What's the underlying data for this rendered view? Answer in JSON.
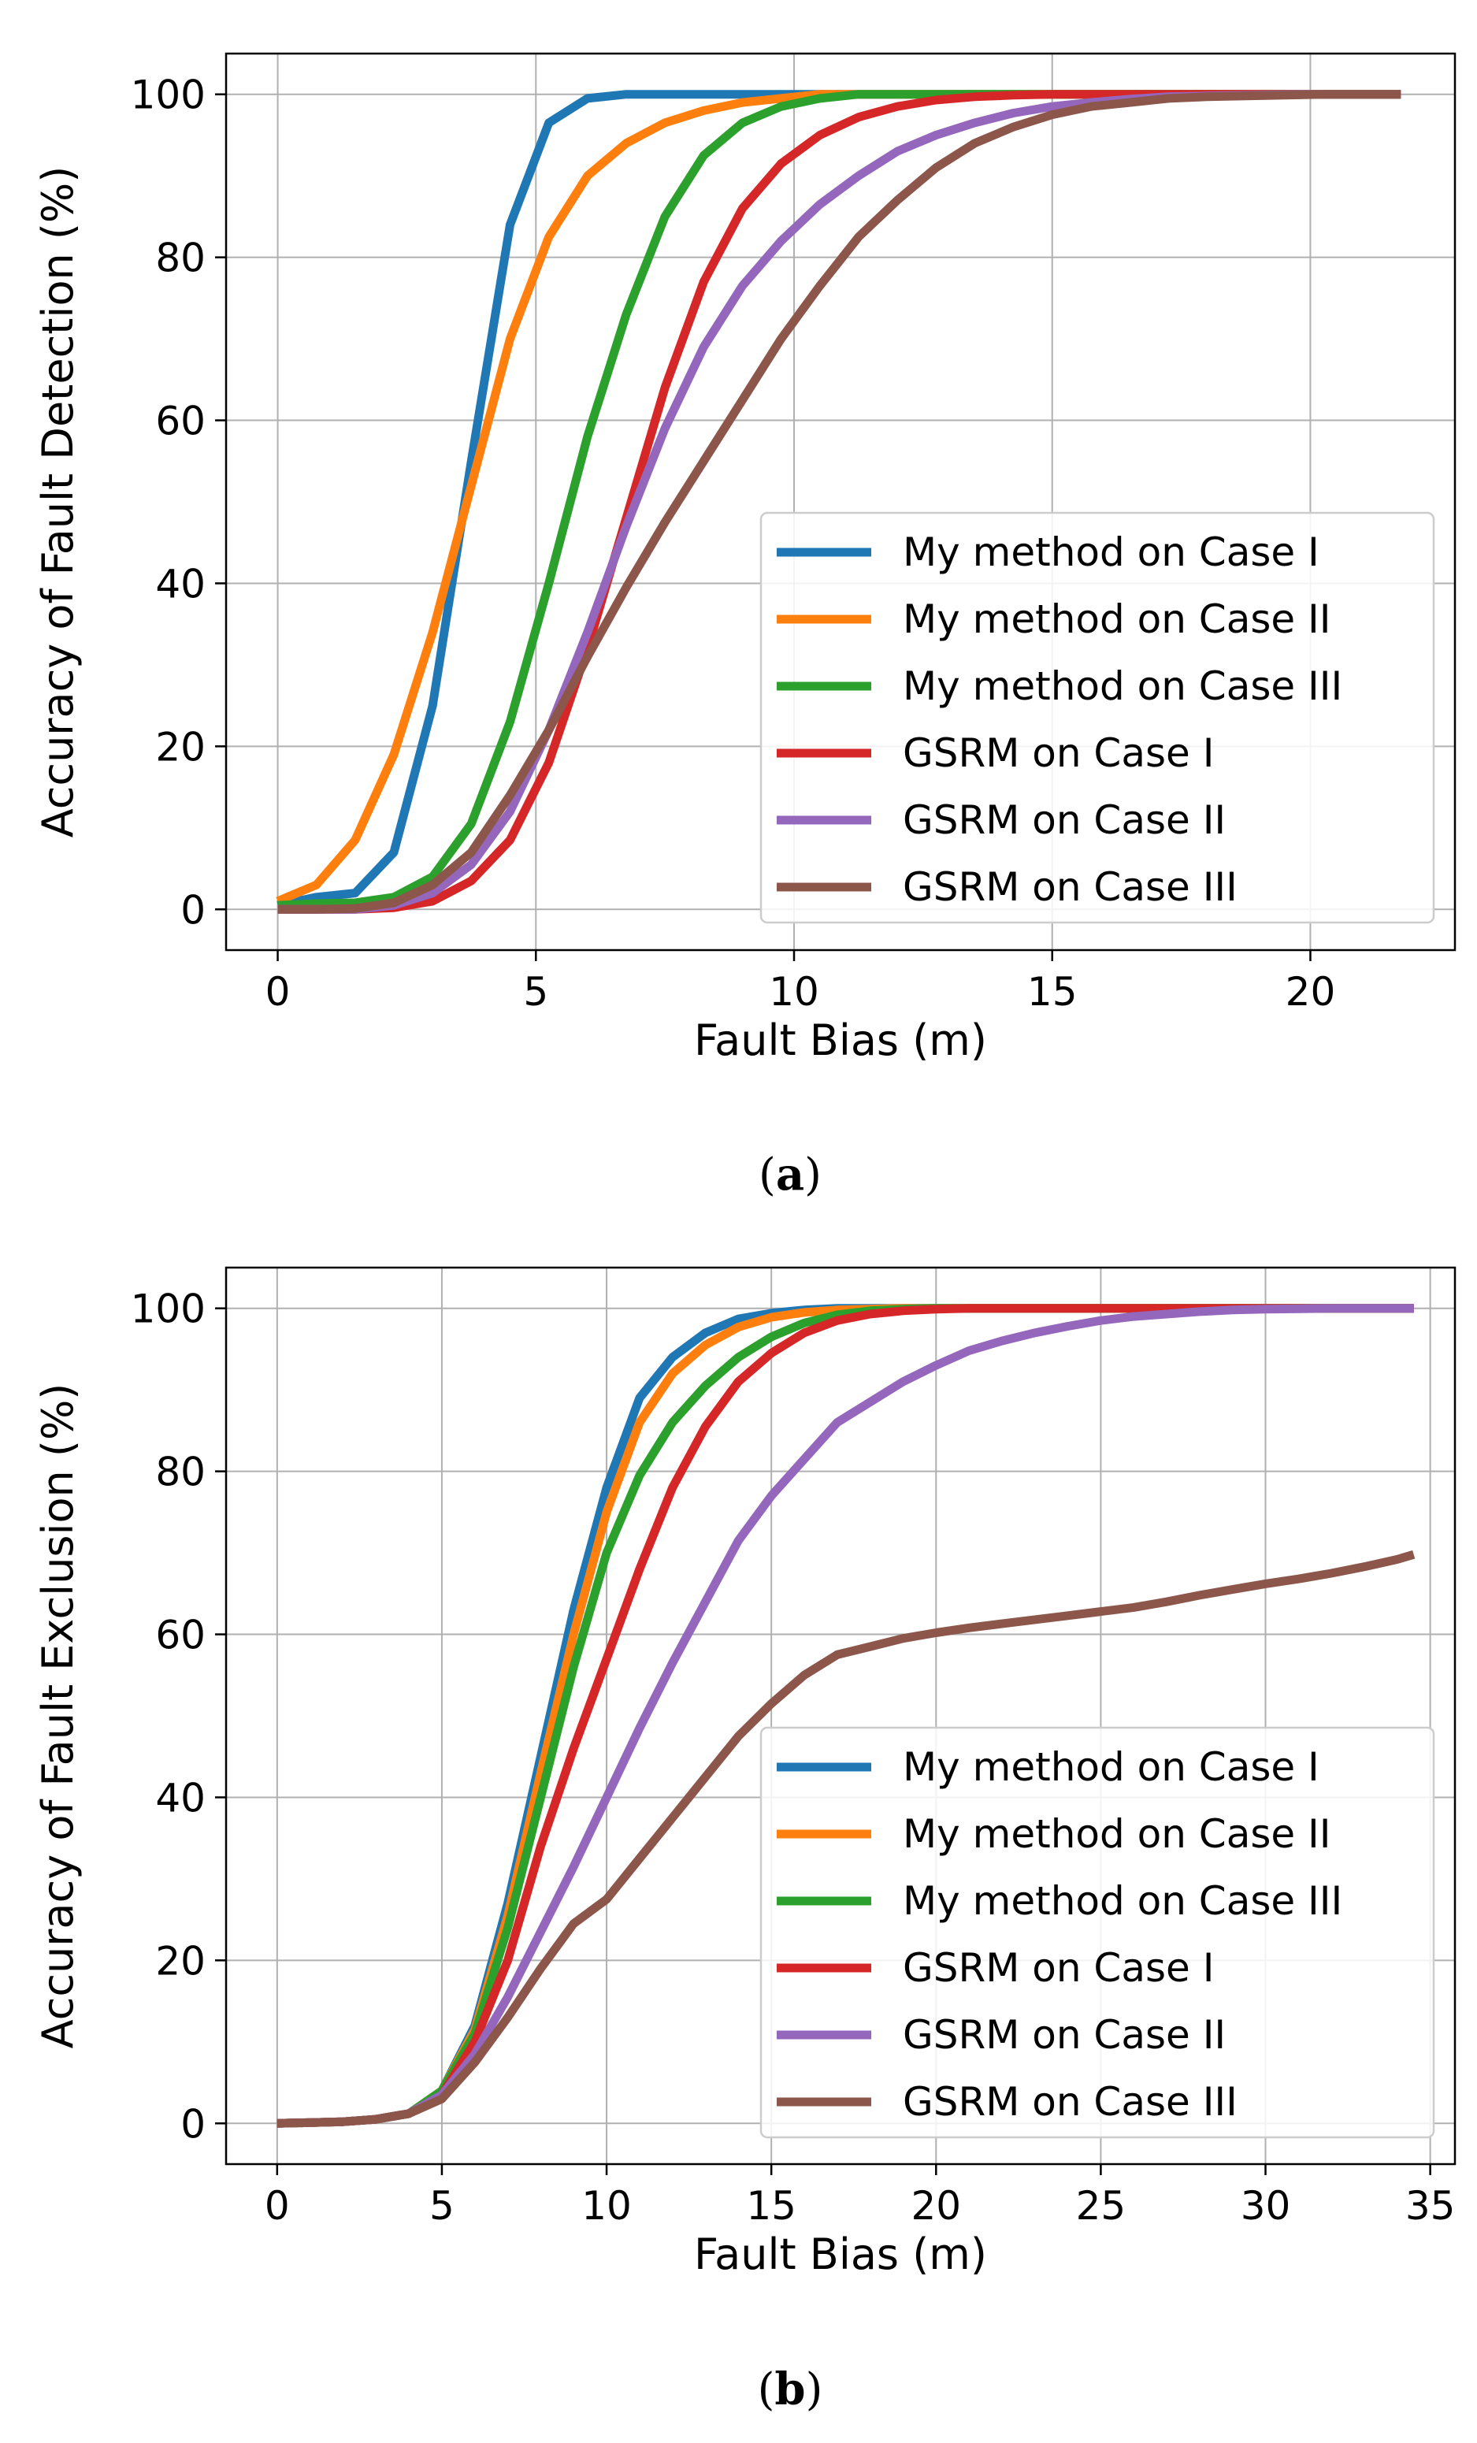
{
  "chart_data": [
    {
      "type": "line",
      "panel_label": "a",
      "xlabel": "Fault Bias (m)",
      "ylabel": "Accuracy of Fault Detection (%)",
      "xlim": [
        -1,
        22.8
      ],
      "ylim": [
        -5,
        105
      ],
      "xticks": [
        0,
        5,
        10,
        15,
        20
      ],
      "yticks": [
        0,
        20,
        40,
        60,
        80,
        100
      ],
      "grid": true,
      "legend_position": "lower right",
      "series": [
        {
          "name": "My method on Case I",
          "color": "#1f77b4",
          "x": [
            0,
            0.75,
            1.5,
            2.25,
            3,
            3.75,
            4.5,
            5.25,
            6,
            6.75,
            7.5,
            8.25,
            9,
            10,
            12,
            15,
            20,
            21.75
          ],
          "y": [
            0.5,
            1.5,
            2,
            7,
            25,
            55,
            84,
            96.5,
            99.5,
            100,
            100,
            100,
            100,
            100,
            100,
            100,
            100,
            100
          ]
        },
        {
          "name": "My method on Case II",
          "color": "#ff7f0e",
          "x": [
            0,
            0.75,
            1.5,
            2.25,
            3,
            3.75,
            4.5,
            5.25,
            6,
            6.75,
            7.5,
            8.25,
            9,
            9.75,
            10.5,
            12,
            15,
            20,
            21.75
          ],
          "y": [
            1,
            3,
            8.5,
            19,
            34,
            52,
            70,
            82.5,
            90,
            94,
            96.5,
            98,
            99,
            99.5,
            100,
            100,
            100,
            100,
            100
          ]
        },
        {
          "name": "My method on Case III",
          "color": "#2ca02c",
          "x": [
            0,
            0.75,
            1.5,
            2.25,
            3,
            3.75,
            4.5,
            5.25,
            6,
            6.75,
            7.5,
            8.25,
            9,
            9.75,
            10.5,
            11.25,
            12,
            15,
            20,
            21.75
          ],
          "y": [
            0.5,
            0.7,
            0.8,
            1.5,
            4,
            10.5,
            23,
            40,
            58,
            73,
            85,
            92.5,
            96.5,
            98.5,
            99.5,
            100,
            100,
            100,
            100,
            100
          ]
        },
        {
          "name": "GSRM on Case I",
          "color": "#d62728",
          "x": [
            0,
            0.75,
            1.5,
            2.25,
            3,
            3.75,
            4.5,
            5.25,
            6,
            6.75,
            7.5,
            8.25,
            9,
            9.75,
            10.5,
            11.25,
            12,
            12.75,
            13.5,
            14.25,
            15,
            16.5,
            18,
            20,
            21.75
          ],
          "y": [
            0,
            0,
            0,
            0.2,
            1,
            3.5,
            8.5,
            18,
            32,
            48,
            64,
            77,
            86,
            91.5,
            95,
            97.2,
            98.5,
            99.3,
            99.7,
            99.9,
            100,
            100,
            100,
            100,
            100
          ]
        },
        {
          "name": "GSRM on Case II",
          "color": "#9467bd",
          "x": [
            0,
            0.75,
            1.5,
            2.25,
            3,
            3.75,
            4.5,
            5.25,
            6,
            6.75,
            7.5,
            8.25,
            9,
            9.75,
            10.5,
            11.25,
            12,
            12.75,
            13.5,
            14.25,
            15,
            15.75,
            16.5,
            17.25,
            18,
            19,
            20,
            21.75
          ],
          "y": [
            0,
            0,
            0,
            0.5,
            2,
            5.5,
            12,
            22,
            34,
            47,
            59,
            69,
            76.5,
            82,
            86.5,
            90,
            93,
            95,
            96.5,
            97.7,
            98.5,
            99,
            99.4,
            99.7,
            99.8,
            99.9,
            100,
            100
          ]
        },
        {
          "name": "GSRM on Case III",
          "color": "#8c564b",
          "x": [
            0,
            0.75,
            1.5,
            2.25,
            3,
            3.75,
            4.5,
            5.25,
            6,
            6.75,
            7.5,
            8.25,
            9,
            9.75,
            10.5,
            11.25,
            12,
            12.75,
            13.5,
            14.25,
            15,
            15.75,
            16.5,
            17.25,
            18,
            18.75,
            19.5,
            20.25,
            21,
            21.75
          ],
          "y": [
            0,
            0,
            0.1,
            0.8,
            3,
            7,
            14,
            22,
            31,
            39.5,
            47.5,
            55,
            62.5,
            70,
            76.5,
            82.5,
            87,
            91,
            94,
            96,
            97.5,
            98.5,
            99,
            99.5,
            99.7,
            99.8,
            99.9,
            100,
            100,
            100
          ]
        }
      ]
    },
    {
      "type": "line",
      "panel_label": "b",
      "xlabel": "Fault Bias (m)",
      "ylabel": "Accuracy of Fault Exclusion (%)",
      "xlim": [
        -1.55,
        35.75
      ],
      "ylim": [
        -5,
        105
      ],
      "xticks": [
        0,
        5,
        10,
        15,
        20,
        25,
        30,
        35
      ],
      "yticks": [
        0,
        20,
        40,
        60,
        80,
        100
      ],
      "grid": true,
      "legend_position": "lower right",
      "series": [
        {
          "name": "My method on Case I",
          "color": "#1f77b4",
          "x": [
            0,
            2,
            3,
            4,
            5,
            6,
            7,
            8,
            9,
            10,
            11,
            12,
            13,
            14,
            15,
            16,
            17,
            18,
            20,
            25,
            30,
            34.5
          ],
          "y": [
            0,
            0.2,
            0.5,
            1.2,
            4,
            12,
            27,
            45,
            63,
            78,
            89,
            94,
            97,
            98.7,
            99.4,
            99.8,
            100,
            100,
            100,
            100,
            100,
            100
          ]
        },
        {
          "name": "My method on Case II",
          "color": "#ff7f0e",
          "x": [
            0,
            2,
            3,
            4,
            5,
            6,
            7,
            8,
            9,
            10,
            11,
            12,
            13,
            14,
            15,
            16,
            17,
            18,
            19,
            20,
            25,
            30,
            34.5
          ],
          "y": [
            0,
            0.2,
            0.5,
            1.2,
            4,
            11.5,
            25.5,
            43,
            60,
            75,
            86,
            92,
            95.5,
            97.7,
            98.9,
            99.5,
            99.8,
            99.9,
            100,
            100,
            100,
            100,
            100
          ]
        },
        {
          "name": "My method on Case III",
          "color": "#2ca02c",
          "x": [
            0,
            2,
            3,
            4,
            5,
            6,
            7,
            8,
            9,
            10,
            11,
            12,
            13,
            14,
            15,
            16,
            17,
            18,
            19,
            20,
            25,
            30,
            34.5
          ],
          "y": [
            0,
            0.2,
            0.5,
            1.2,
            4,
            11,
            24,
            40,
            56,
            70,
            79.5,
            86,
            90.5,
            94,
            96.5,
            98.2,
            99.2,
            99.7,
            99.9,
            100,
            100,
            100,
            100
          ]
        },
        {
          "name": "GSRM on Case I",
          "color": "#d62728",
          "x": [
            0,
            2,
            3,
            4,
            5,
            6,
            7,
            8,
            9,
            10,
            11,
            12,
            13,
            14,
            15,
            16,
            17,
            18,
            19,
            20,
            21,
            22,
            25,
            30,
            34.5
          ],
          "y": [
            0,
            0.2,
            0.5,
            1.2,
            3.5,
            10,
            20,
            34,
            46,
            57,
            68,
            78,
            85.5,
            91,
            94.5,
            97,
            98.5,
            99.3,
            99.7,
            99.9,
            100,
            100,
            100,
            100,
            100
          ]
        },
        {
          "name": "GSRM on Case II",
          "color": "#9467bd",
          "x": [
            0,
            2,
            3,
            4,
            5,
            6,
            7,
            8,
            9,
            10,
            11,
            12,
            13,
            14,
            15,
            16,
            17,
            18,
            19,
            20,
            21,
            22,
            23,
            24,
            25,
            26,
            27,
            28,
            29,
            30,
            32,
            34.5
          ],
          "y": [
            0,
            0.2,
            0.5,
            1.2,
            3.5,
            8.5,
            15.5,
            23.5,
            31.5,
            40,
            48.5,
            56.5,
            64,
            71.5,
            77,
            81.5,
            86,
            88.5,
            91,
            93,
            94.8,
            96,
            97,
            97.8,
            98.5,
            99,
            99.3,
            99.6,
            99.8,
            99.9,
            100,
            100
          ]
        },
        {
          "name": "GSRM on Case III",
          "color": "#8c564b",
          "x": [
            0,
            2,
            3,
            4,
            5,
            6,
            7,
            8,
            9,
            10,
            11,
            12,
            13,
            14,
            15,
            16,
            17,
            18,
            19,
            20,
            21,
            22,
            23,
            24,
            25,
            26,
            27,
            28,
            29,
            30,
            31,
            32,
            33,
            34,
            34.5
          ],
          "y": [
            0,
            0.2,
            0.5,
            1.2,
            3,
            7.5,
            13,
            19,
            24.5,
            27.5,
            32.5,
            37.5,
            42.5,
            47.5,
            51.5,
            55,
            57.5,
            58.5,
            59.5,
            60.2,
            60.8,
            61.3,
            61.8,
            62.3,
            62.8,
            63.3,
            64,
            64.8,
            65.5,
            66.2,
            66.8,
            67.5,
            68.3,
            69.2,
            69.8
          ]
        }
      ]
    }
  ]
}
